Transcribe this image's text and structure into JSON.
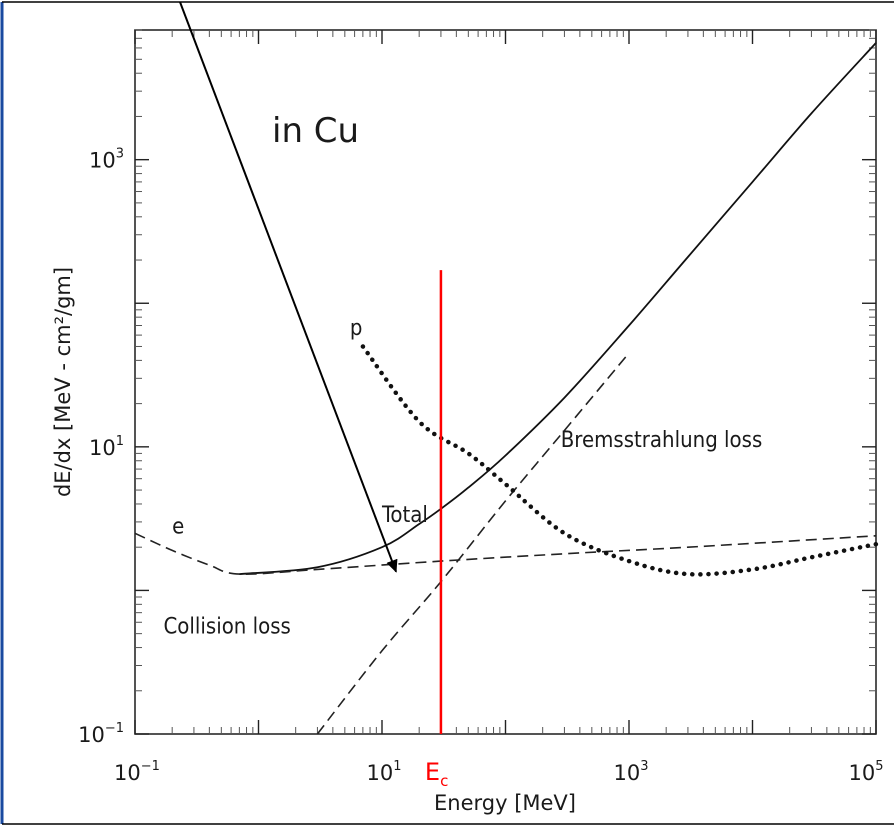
{
  "chart_data": {
    "type": "line",
    "title": "in Cu",
    "xlabel": "Energy [MeV]",
    "ylabel": "dE/dx [MeV - cm²/gm]",
    "xscale": "log",
    "yscale": "log",
    "xlim": [
      0.1,
      100000
    ],
    "ylim": [
      0.1,
      8000
    ],
    "grid": false,
    "x_ticks": [
      {
        "base": "10",
        "exp": "−1"
      },
      {
        "base": "10",
        "exp": "1"
      },
      {
        "base": "10",
        "exp": "3"
      },
      {
        "base": "10",
        "exp": "5"
      }
    ],
    "y_ticks": [
      {
        "base": "10",
        "exp": "−1"
      },
      {
        "base": "10",
        "exp": "1"
      },
      {
        "base": "10",
        "exp": "3"
      }
    ],
    "series": [
      {
        "name": "Total",
        "style": "solid",
        "points": [
          [
            0.7,
            1.3
          ],
          [
            3,
            1.45
          ],
          [
            10,
            2.0
          ],
          [
            20,
            2.9
          ],
          [
            30,
            3.7
          ],
          [
            50,
            5.2
          ],
          [
            100,
            8.7
          ],
          [
            300,
            22
          ],
          [
            1000,
            70
          ],
          [
            3000,
            210
          ],
          [
            10000,
            700
          ],
          [
            30000,
            2100
          ],
          [
            100000,
            6500
          ]
        ]
      },
      {
        "name": "Collision loss",
        "style": "dashed",
        "points": [
          [
            0.1,
            2.5
          ],
          [
            0.2,
            1.9
          ],
          [
            0.4,
            1.5
          ],
          [
            0.7,
            1.3
          ],
          [
            3,
            1.4
          ],
          [
            30,
            1.6
          ],
          [
            300,
            1.8
          ],
          [
            3000,
            2.0
          ],
          [
            100000,
            2.4
          ]
        ]
      },
      {
        "name": "Bremsstrahlung loss",
        "style": "dashed",
        "points": [
          [
            3,
            0.1
          ],
          [
            10,
            0.38
          ],
          [
            30,
            1.15
          ],
          [
            100,
            4.2
          ],
          [
            300,
            13
          ],
          [
            1000,
            45
          ]
        ]
      },
      {
        "name": "p",
        "style": "dotted",
        "points": [
          [
            7,
            50
          ],
          [
            20,
            15
          ],
          [
            50,
            9
          ],
          [
            100,
            5.5
          ],
          [
            300,
            2.5
          ],
          [
            1000,
            1.6
          ],
          [
            3000,
            1.3
          ],
          [
            10000,
            1.4
          ],
          [
            30000,
            1.7
          ],
          [
            100000,
            2.1
          ]
        ]
      }
    ],
    "vertical_line": {
      "label": "E",
      "label_sub": "c",
      "x": 30,
      "y_range": [
        0.1,
        170
      ],
      "color": "#ff0000"
    },
    "annotations": {
      "total": {
        "text": "Total",
        "x": 10,
        "y": 3.0
      },
      "collision": {
        "text": "Collision loss",
        "x": 0.17,
        "y": 0.5
      },
      "brems": {
        "text": "Bremsstrahlung loss",
        "x": 280,
        "y": 10
      },
      "e": {
        "text": "e",
        "x": 0.2,
        "y": 2.5
      },
      "p": {
        "text": "p",
        "x": 5.5,
        "y": 60
      }
    },
    "arrow": {
      "color": "#000000",
      "to": [
        13,
        1.35
      ]
    },
    "colors": {
      "axis": "#1a1a1a",
      "ec_line": "#ff0000",
      "frame_left": "#1a4aa0"
    }
  }
}
